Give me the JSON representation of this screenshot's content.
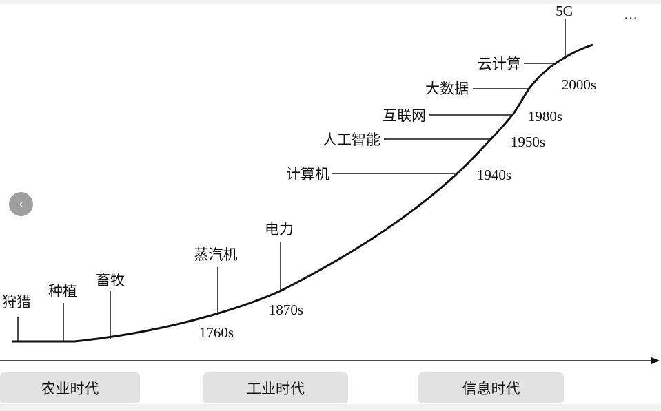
{
  "milestones": [
    {
      "name": "狩猎"
    },
    {
      "name": "种植"
    },
    {
      "name": "畜牧"
    },
    {
      "name": "蒸汽机",
      "year": "1760s"
    },
    {
      "name": "电力",
      "year": "1870s"
    },
    {
      "name": "计算机",
      "year": "1940s"
    },
    {
      "name": "人工智能",
      "year": "1950s"
    },
    {
      "name": "互联网",
      "year": "1980s"
    },
    {
      "name": "大数据"
    },
    {
      "name": "云计算",
      "year": "2000s"
    },
    {
      "name": "5G"
    }
  ],
  "eras": [
    "农业时代",
    "工业时代",
    "信息时代"
  ],
  "controls": {
    "prev_icon": "chevron-left-icon",
    "prev_glyph": "‹",
    "more_icon": "more-icon",
    "more_glyph": "⋯"
  }
}
